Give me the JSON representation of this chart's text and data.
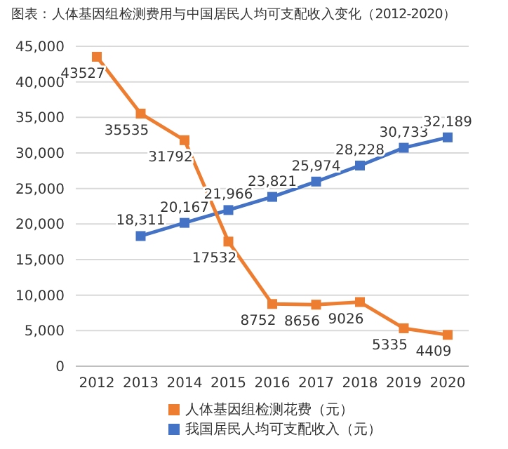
{
  "chart_data": {
    "type": "line",
    "title": "图表：人体基因组检测费用与中国居民人均可支配收入变化（2012-2020）",
    "categories": [
      "2012",
      "2013",
      "2014",
      "2015",
      "2016",
      "2017",
      "2018",
      "2019",
      "2020"
    ],
    "series": [
      {
        "name": "我国居民人均可支配收入（元）",
        "color": "#4472c4",
        "values": [
          null,
          18311,
          20167,
          21966,
          23821,
          25974,
          28228,
          30733,
          32189
        ],
        "value_labels": [
          null,
          "18,311",
          "20,167",
          "21,966",
          "23,821",
          "25,974",
          "28,228",
          "30,733",
          "32,189"
        ]
      },
      {
        "name": "人体基因组检测花费（元）",
        "color": "#ed7d31",
        "values": [
          43527,
          35535,
          31792,
          17532,
          8752,
          8656,
          9026,
          5335,
          4409
        ],
        "value_labels": [
          "43527",
          "35535",
          "31792",
          "17532",
          "8752",
          "8656",
          "9026",
          "5335",
          "4409"
        ]
      }
    ],
    "ylim": [
      0,
      45000
    ],
    "yticks": [
      {
        "value": 0,
        "label": "0"
      },
      {
        "value": 5000,
        "label": "5,000"
      },
      {
        "value": 10000,
        "label": "10,000"
      },
      {
        "value": 15000,
        "label": "15,000"
      },
      {
        "value": 20000,
        "label": "20,000"
      },
      {
        "value": 25000,
        "label": "25,000"
      },
      {
        "value": 30000,
        "label": "30,000"
      },
      {
        "value": 35000,
        "label": "35,000"
      },
      {
        "value": 40000,
        "label": "40,000"
      },
      {
        "value": 45000,
        "label": "45,000"
      }
    ],
    "grid": "y",
    "legend": "bottom",
    "marker": "square",
    "line_style": "solid"
  }
}
